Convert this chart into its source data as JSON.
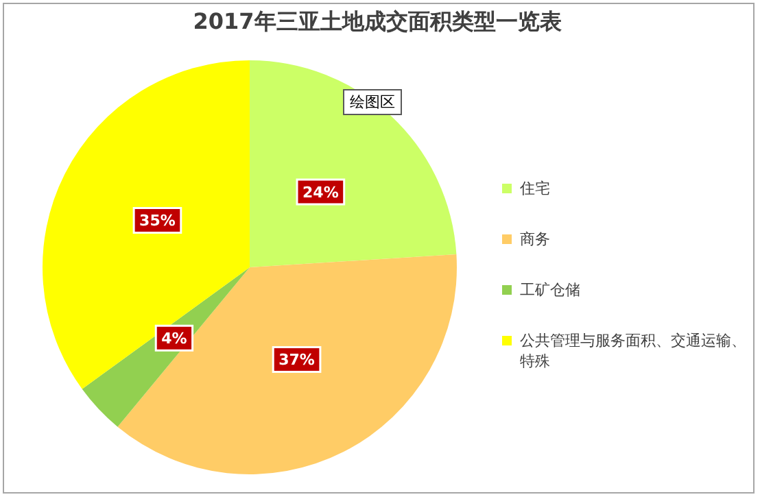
{
  "chart_data": {
    "type": "pie",
    "title": "2017年三亚土地成交面积类型一览表",
    "categories": [
      "住宅",
      "商务",
      "工矿仓储",
      "公共管理与服务面积、交通运输、特殊"
    ],
    "values": [
      24,
      37,
      4,
      35
    ],
    "colors": [
      "#ccff66",
      "#ffcc66",
      "#92d050",
      "#ffff00"
    ],
    "value_labels": [
      "24%",
      "37%",
      "4%",
      "35%"
    ],
    "legend": "right",
    "annotations": [
      "绘图区"
    ]
  }
}
